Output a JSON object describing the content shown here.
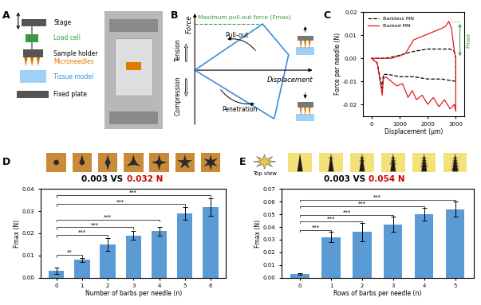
{
  "panel_labels": [
    "A",
    "B",
    "C",
    "D",
    "E"
  ],
  "diagram_a": {
    "labels": [
      {
        "text": "Stage",
        "color": "#000000"
      },
      {
        "text": "Load cell",
        "color": "#2e9e3e"
      },
      {
        "text": "Sample holder",
        "color": "#000000"
      },
      {
        "text": "Microneedles",
        "color": "#e07b00"
      },
      {
        "text": "Tissue model",
        "color": "#3a8fd9"
      },
      {
        "text": "Fixed plate",
        "color": "#000000"
      }
    ]
  },
  "diagram_b": {
    "y_axis": "Force",
    "x_axis": "Displacement",
    "up": "Tension",
    "down": "Compression",
    "max_label": "Maximum pull-out force (Fmax)",
    "max_color": "#2e9e3e",
    "upper_arrow": "Pull-out",
    "lower_arrow": "Penetration"
  },
  "chart_data": [
    {
      "type": "line",
      "x_label": "Displacement (µm)",
      "y_label": "Force per needle (N)",
      "xlim": [
        -300,
        3300
      ],
      "xticks": [
        0,
        1000,
        2000,
        3000
      ],
      "ylim": [
        -0.025,
        0.02
      ],
      "yticks": [
        -0.02,
        -0.01,
        {
          "value": 0,
          "label": "0.00"
        },
        0.01,
        0.02
      ],
      "legend": "upper left",
      "series": [
        {
          "name": "Barbless MN",
          "color": "#000000",
          "line_style": "dashed",
          "x": [
            0,
            200,
            380,
            420,
            600,
            1000,
            1500,
            2000,
            2500,
            3000,
            3000,
            2950,
            2800,
            2500,
            2000,
            1500,
            1200,
            900,
            500,
            0
          ],
          "values": [
            0,
            -0.002,
            -0.013,
            -0.007,
            -0.007,
            -0.008,
            -0.008,
            -0.009,
            -0.009,
            -0.01,
            0.0,
            0.003,
            0.004,
            0.004,
            0.004,
            0.003,
            0.002,
            0.001,
            0.0,
            0.0
          ]
        },
        {
          "name": "Barbed MN",
          "color": "#e31a1c",
          "line_style": "solid",
          "x": [
            0,
            200,
            380,
            420,
            500,
            700,
            900,
            1100,
            1300,
            1450,
            1600,
            1800,
            2000,
            2200,
            2400,
            2600,
            2800,
            2950,
            3000,
            3000,
            2950,
            2850,
            2750,
            2650,
            2500,
            2300,
            2100,
            1900,
            1700,
            1500,
            1350,
            1200,
            1000,
            700,
            400,
            100,
            0
          ],
          "values": [
            0,
            -0.002,
            -0.016,
            -0.009,
            -0.008,
            -0.01,
            -0.012,
            -0.011,
            -0.017,
            -0.014,
            -0.018,
            -0.016,
            -0.02,
            -0.017,
            -0.021,
            -0.018,
            -0.022,
            -0.02,
            -0.023,
            0.0,
            0.003,
            0.013,
            0.016,
            0.014,
            0.013,
            0.012,
            0.011,
            0.01,
            0.009,
            0.008,
            0.005,
            0.002,
            0.001,
            0.0,
            0.0,
            0.0,
            0.0
          ]
        }
      ],
      "annotations": [
        {
          "text": "Fmax",
          "color": "#2e9e3e"
        }
      ]
    },
    {
      "type": "bar",
      "categories": [
        "0",
        "1",
        "2",
        "3",
        "4",
        "5",
        "6"
      ],
      "values": [
        0.003,
        0.008,
        0.015,
        0.019,
        0.021,
        0.029,
        0.032
      ],
      "errors": [
        0.0015,
        0.001,
        0.003,
        0.002,
        0.002,
        0.003,
        0.004
      ],
      "color": "#5b9bd5",
      "x_label": "Number of barbs per needle (n)",
      "y_label": "Fmax (N)",
      "ylim": [
        0,
        0.04
      ],
      "yticks": [
        {
          "value": 0,
          "label": "0.00"
        },
        0.01,
        0.02,
        0.03,
        0.04
      ],
      "comparison": [
        {
          "text": "0.003 VS",
          "color": "#000000"
        },
        {
          "text": "0.032 N",
          "color": "#cc0000"
        }
      ],
      "significance": [
        {
          "from": 0,
          "to": 1,
          "label": "**"
        },
        {
          "from": 0,
          "to": 2,
          "label": "***"
        },
        {
          "from": 0,
          "to": 3,
          "label": "***"
        },
        {
          "from": 0,
          "to": 4,
          "label": "***"
        },
        {
          "from": 0,
          "to": 5,
          "label": "***"
        },
        {
          "from": 0,
          "to": 6,
          "label": "***"
        }
      ]
    },
    {
      "type": "bar",
      "categories": [
        "0",
        "1",
        "2",
        "3",
        "4",
        "5"
      ],
      "values": [
        0.003,
        0.032,
        0.036,
        0.042,
        0.05,
        0.054
      ],
      "errors": [
        0.0008,
        0.004,
        0.007,
        0.006,
        0.005,
        0.006
      ],
      "color": "#5b9bd5",
      "x_label": "Rows of barbs per needle (n)",
      "y_label": "Fmax (N)",
      "ylim": [
        0,
        0.07
      ],
      "yticks": [
        {
          "value": 0,
          "label": "0.00"
        },
        0.01,
        0.02,
        0.03,
        0.04,
        0.05,
        0.06,
        0.07
      ],
      "comparison": [
        {
          "text": "0.003 VS",
          "color": "#000000"
        },
        {
          "text": "0.054 N",
          "color": "#cc0000"
        }
      ],
      "image_caption": "Top view",
      "significance": [
        {
          "from": 0,
          "to": 1,
          "label": "***"
        },
        {
          "from": 0,
          "to": 2,
          "label": "***"
        },
        {
          "from": 0,
          "to": 3,
          "label": "***"
        },
        {
          "from": 0,
          "to": 4,
          "label": "***"
        },
        {
          "from": 0,
          "to": 5,
          "label": "***"
        }
      ]
    }
  ]
}
